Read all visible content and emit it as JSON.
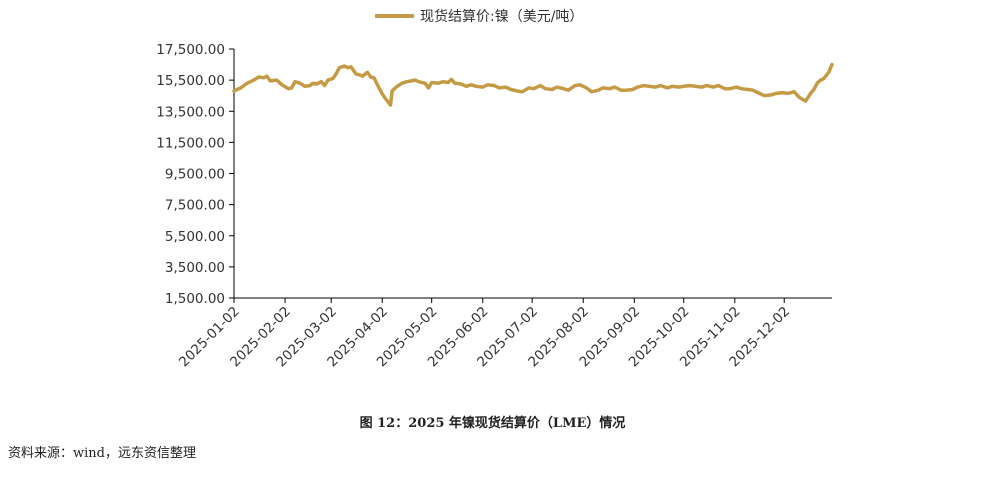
{
  "chart_data": {
    "type": "line",
    "title": "",
    "xlabel": "",
    "ylabel": "",
    "legend": {
      "placement": "top-center"
    },
    "ylim": [
      1500,
      17500
    ],
    "y_ticks": [
      "1,500.00",
      "3,500.00",
      "5,500.00",
      "7,500.00",
      "9,500.00",
      "11,500.00",
      "13,500.00",
      "15,500.00",
      "17,500.00"
    ],
    "x_ticks": [
      "2025-01-02",
      "2025-02-02",
      "2025-03-02",
      "2025-04-02",
      "2025-05-02",
      "2025-06-02",
      "2025-07-02",
      "2025-08-02",
      "2025-09-02",
      "2025-10-02",
      "2025-11-02",
      "2025-12-02"
    ],
    "x_range": [
      "2025-01-02",
      "2025-12-31"
    ],
    "grid": false,
    "series": [
      {
        "name": "现货结算价:镍（美元/吨）",
        "color": "#c49a45",
        "points": [
          [
            "2025-01-02",
            14800
          ],
          [
            "2025-01-06",
            15000
          ],
          [
            "2025-01-10",
            15300
          ],
          [
            "2025-01-14",
            15500
          ],
          [
            "2025-01-17",
            15700
          ],
          [
            "2025-01-20",
            15650
          ],
          [
            "2025-01-22",
            15750
          ],
          [
            "2025-01-24",
            15450
          ],
          [
            "2025-01-28",
            15500
          ],
          [
            "2025-01-31",
            15200
          ],
          [
            "2025-02-04",
            14950
          ],
          [
            "2025-02-06",
            15000
          ],
          [
            "2025-02-08",
            15400
          ],
          [
            "2025-02-11",
            15300
          ],
          [
            "2025-02-14",
            15100
          ],
          [
            "2025-02-17",
            15150
          ],
          [
            "2025-02-19",
            15300
          ],
          [
            "2025-02-21",
            15250
          ],
          [
            "2025-02-24",
            15400
          ],
          [
            "2025-02-26",
            15150
          ],
          [
            "2025-02-28",
            15500
          ],
          [
            "2025-03-03",
            15600
          ],
          [
            "2025-03-05",
            15900
          ],
          [
            "2025-03-07",
            16300
          ],
          [
            "2025-03-10",
            16400
          ],
          [
            "2025-03-12",
            16300
          ],
          [
            "2025-03-14",
            16350
          ],
          [
            "2025-03-17",
            15900
          ],
          [
            "2025-03-19",
            15850
          ],
          [
            "2025-03-21",
            15750
          ],
          [
            "2025-03-24",
            16000
          ],
          [
            "2025-03-26",
            15700
          ],
          [
            "2025-03-28",
            15650
          ],
          [
            "2025-03-31",
            15000
          ],
          [
            "2025-04-02",
            14600
          ],
          [
            "2025-04-04",
            14300
          ],
          [
            "2025-04-07",
            13900
          ],
          [
            "2025-04-08",
            14800
          ],
          [
            "2025-04-11",
            15100
          ],
          [
            "2025-04-14",
            15300
          ],
          [
            "2025-04-17",
            15400
          ],
          [
            "2025-04-22",
            15500
          ],
          [
            "2025-04-24",
            15400
          ],
          [
            "2025-04-28",
            15300
          ],
          [
            "2025-04-30",
            15000
          ],
          [
            "2025-05-02",
            15350
          ],
          [
            "2025-05-06",
            15300
          ],
          [
            "2025-05-09",
            15400
          ],
          [
            "2025-05-12",
            15350
          ],
          [
            "2025-05-14",
            15550
          ],
          [
            "2025-05-16",
            15300
          ],
          [
            "2025-05-20",
            15250
          ],
          [
            "2025-05-23",
            15100
          ],
          [
            "2025-05-26",
            15200
          ],
          [
            "2025-05-29",
            15100
          ],
          [
            "2025-06-02",
            15050
          ],
          [
            "2025-06-05",
            15200
          ],
          [
            "2025-06-09",
            15150
          ],
          [
            "2025-06-12",
            15000
          ],
          [
            "2025-06-16",
            15050
          ],
          [
            "2025-06-19",
            14900
          ],
          [
            "2025-06-23",
            14800
          ],
          [
            "2025-06-26",
            14750
          ],
          [
            "2025-06-30",
            15000
          ],
          [
            "2025-07-03",
            14950
          ],
          [
            "2025-07-07",
            15150
          ],
          [
            "2025-07-10",
            14950
          ],
          [
            "2025-07-14",
            14900
          ],
          [
            "2025-07-17",
            15050
          ],
          [
            "2025-07-21",
            14950
          ],
          [
            "2025-07-24",
            14850
          ],
          [
            "2025-07-28",
            15150
          ],
          [
            "2025-07-31",
            15200
          ],
          [
            "2025-08-04",
            15000
          ],
          [
            "2025-08-07",
            14750
          ],
          [
            "2025-08-11",
            14850
          ],
          [
            "2025-08-14",
            15000
          ],
          [
            "2025-08-18",
            14950
          ],
          [
            "2025-08-21",
            15050
          ],
          [
            "2025-08-25",
            14850
          ],
          [
            "2025-08-28",
            14850
          ],
          [
            "2025-09-01",
            14900
          ],
          [
            "2025-09-04",
            15050
          ],
          [
            "2025-09-08",
            15150
          ],
          [
            "2025-09-11",
            15100
          ],
          [
            "2025-09-15",
            15050
          ],
          [
            "2025-09-18",
            15150
          ],
          [
            "2025-09-22",
            15000
          ],
          [
            "2025-09-25",
            15100
          ],
          [
            "2025-09-29",
            15050
          ],
          [
            "2025-10-02",
            15100
          ],
          [
            "2025-10-06",
            15150
          ],
          [
            "2025-10-09",
            15100
          ],
          [
            "2025-10-13",
            15050
          ],
          [
            "2025-10-16",
            15150
          ],
          [
            "2025-10-20",
            15050
          ],
          [
            "2025-10-23",
            15150
          ],
          [
            "2025-10-27",
            14950
          ],
          [
            "2025-10-30",
            14950
          ],
          [
            "2025-11-03",
            15050
          ],
          [
            "2025-11-06",
            14950
          ],
          [
            "2025-11-10",
            14900
          ],
          [
            "2025-11-13",
            14850
          ],
          [
            "2025-11-17",
            14650
          ],
          [
            "2025-11-20",
            14500
          ],
          [
            "2025-11-24",
            14550
          ],
          [
            "2025-11-27",
            14650
          ],
          [
            "2025-12-01",
            14700
          ],
          [
            "2025-12-04",
            14650
          ],
          [
            "2025-12-08",
            14750
          ],
          [
            "2025-12-11",
            14400
          ],
          [
            "2025-12-15",
            14150
          ],
          [
            "2025-12-18",
            14650
          ],
          [
            "2025-12-20",
            14900
          ],
          [
            "2025-12-22",
            15300
          ],
          [
            "2025-12-24",
            15500
          ],
          [
            "2025-12-26",
            15600
          ],
          [
            "2025-12-29",
            16000
          ],
          [
            "2025-12-31",
            16500
          ]
        ]
      }
    ]
  },
  "caption": "图 12：2025 年镍现货结算价（LME）情况",
  "source": "资料来源：wind，远东资信整理"
}
